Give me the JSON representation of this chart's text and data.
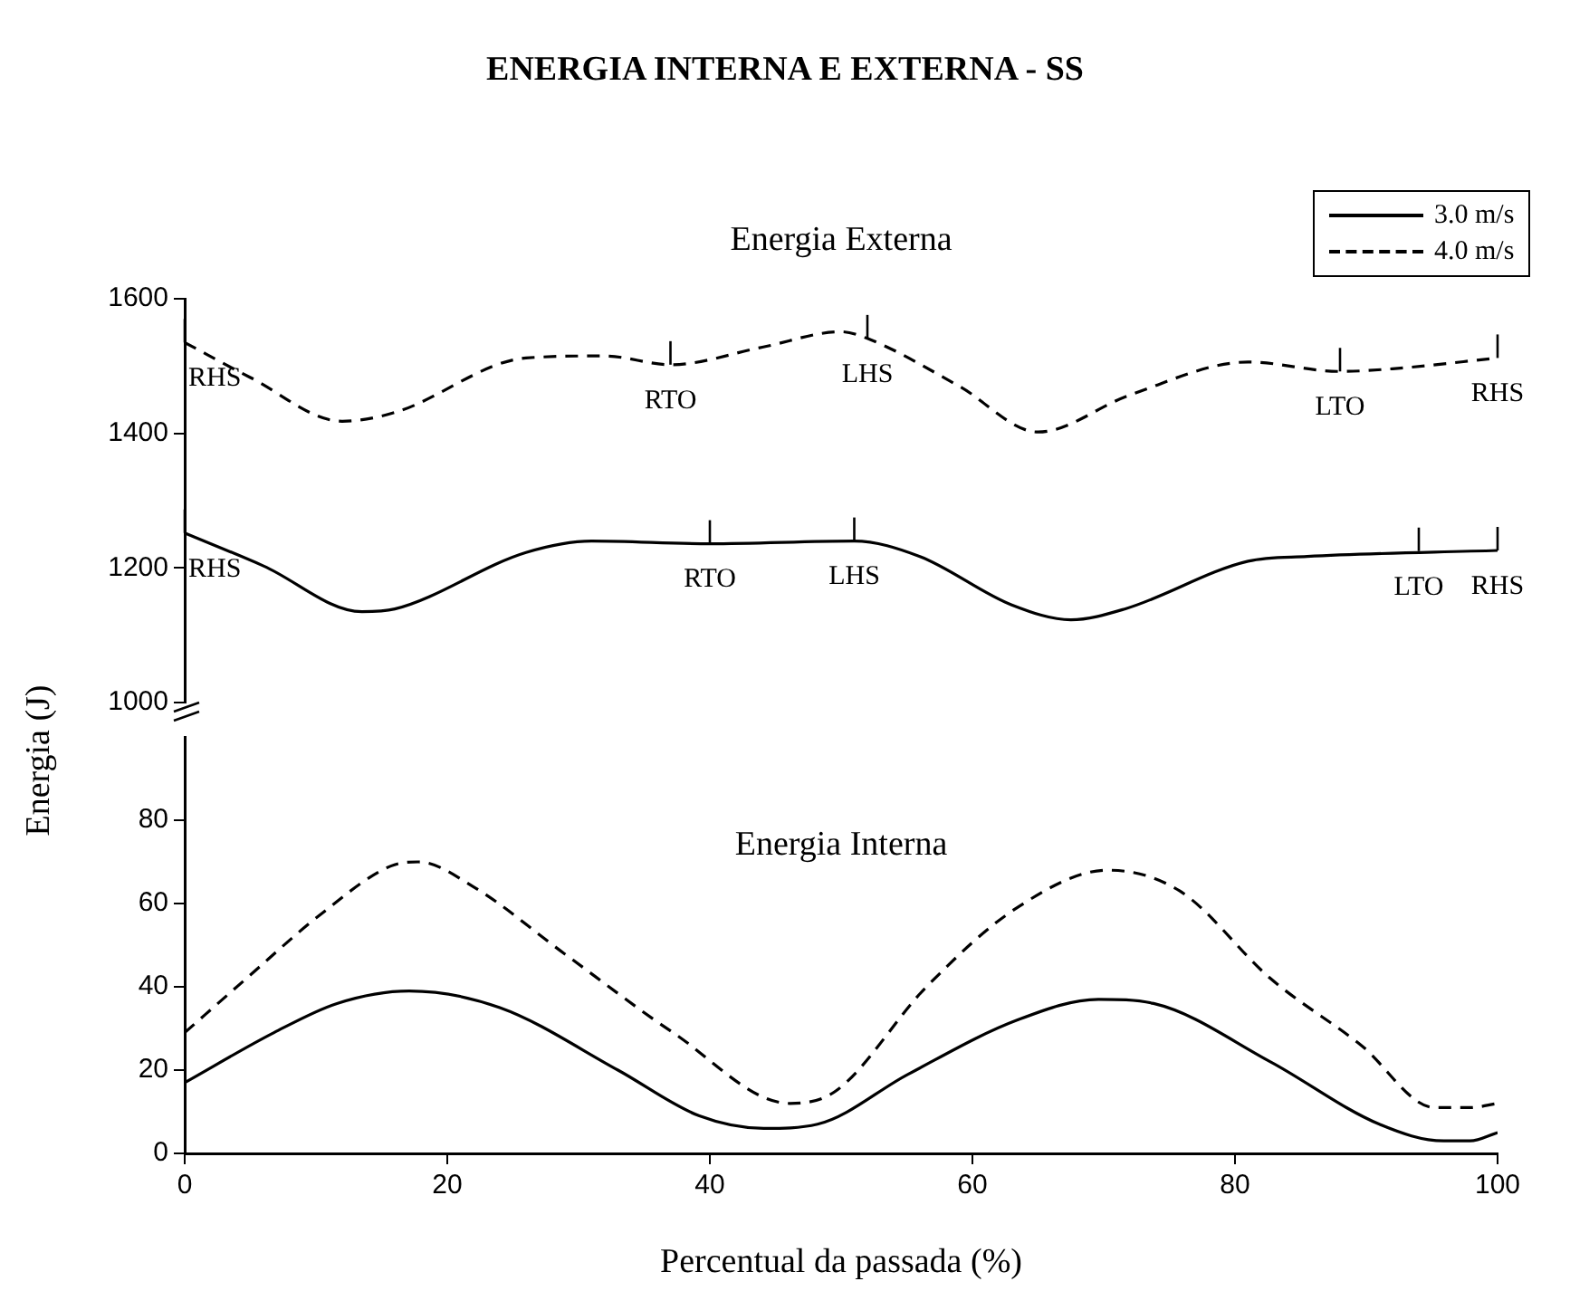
{
  "chart_data": [
    {
      "type": "line",
      "title": "ENERGIA INTERNA E EXTERNA - SS",
      "ylabel": "Energia (J)",
      "xlim": [
        0,
        100
      ],
      "ylim": [
        1000,
        1600
      ],
      "yticks": [
        1000,
        1200,
        1400,
        1600
      ],
      "tick_labels": "y",
      "legend": "top right",
      "marker": "none",
      "series": [
        {
          "name": "3.0 m/s",
          "color": "#000000",
          "line_style": "solid",
          "x": [
            0,
            6,
            13.5,
            16,
            26,
            31,
            40,
            51,
            56,
            63,
            67.5,
            71.6,
            81,
            85.5,
            100
          ],
          "values": [
            1252,
            1203,
            1135,
            1139,
            1223,
            1240,
            1236,
            1240,
            1217,
            1145,
            1123,
            1139,
            1210,
            1217,
            1226
          ]
        },
        {
          "name": "4.0 m/s",
          "color": "#000000",
          "line_style": "dashed",
          "x": [
            0,
            5,
            12,
            16,
            26,
            32,
            37,
            44,
            50,
            52,
            59,
            65,
            72,
            81,
            88,
            92,
            100
          ],
          "values": [
            1535,
            1483,
            1418,
            1431,
            1512,
            1515,
            1502,
            1528,
            1551,
            1541,
            1470,
            1402,
            1457,
            1506,
            1492,
            1496,
            1512
          ]
        }
      ],
      "annotations": [
        "Energia Externa",
        {
          "text": "RHS",
          "x": 0,
          "y": 1535
        },
        {
          "text": "RTO",
          "x": 37,
          "y": 1502
        },
        {
          "text": "LHS",
          "x": 52,
          "y": 1541
        },
        {
          "text": "LTO",
          "x": 88,
          "y": 1492
        },
        {
          "text": "RHS",
          "x": 100,
          "y": 1512
        },
        {
          "text": "RHS",
          "x": 0,
          "y": 1252
        },
        {
          "text": "RTO",
          "x": 40,
          "y": 1236
        },
        {
          "text": "LHS",
          "x": 51,
          "y": 1240
        },
        {
          "text": "LTO",
          "x": 94,
          "y": 1225
        },
        {
          "text": "RHS",
          "x": 100,
          "y": 1226
        }
      ]
    },
    {
      "type": "line",
      "xlabel": "Percentual da passada (%)",
      "xlim": [
        0,
        100
      ],
      "xticks": [
        0,
        20,
        40,
        60,
        80,
        100
      ],
      "ylim": [
        0,
        100
      ],
      "yticks": [
        0,
        20,
        40,
        60,
        80
      ],
      "marker": "none",
      "series": [
        {
          "color": "#000000",
          "line_style": "solid",
          "x": [
            0,
            6.8,
            11.6,
            17.1,
            24,
            33,
            39.2,
            44.1,
            48.2,
            55.1,
            63.4,
            69.6,
            73.8,
            82.7,
            91,
            95.9,
            97.9,
            100
          ],
          "values": [
            17,
            29,
            36,
            39,
            35,
            20,
            9,
            6,
            7,
            19,
            32,
            37,
            36,
            22,
            7,
            3,
            3,
            5
          ]
        },
        {
          "color": "#000000",
          "line_style": "dashed",
          "x": [
            0,
            4.7,
            10.2,
            15.7,
            17.8,
            22,
            28.9,
            37.2,
            46.1,
            49.6,
            56.5,
            63.4,
            70.3,
            75.8,
            82.7,
            89.6,
            95.2,
            97.9,
            100
          ],
          "values": [
            29,
            42,
            57,
            69,
            70,
            64,
            48,
            29,
            12,
            15,
            40,
            59,
            68,
            63,
            42,
            26,
            11,
            11,
            12
          ]
        }
      ],
      "annotations": [
        "Energia Interna"
      ]
    }
  ]
}
